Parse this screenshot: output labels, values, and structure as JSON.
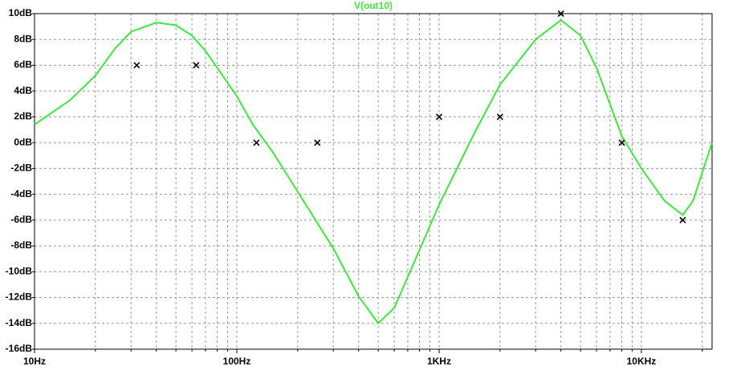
{
  "chart_data": {
    "type": "line",
    "title": "V(out10)",
    "xscale": "log",
    "xlim": [
      10,
      22350
    ],
    "ylim": [
      -16,
      10
    ],
    "xticks": [
      {
        "value": 10,
        "label": "10Hz"
      },
      {
        "value": 100,
        "label": "100Hz"
      },
      {
        "value": 1000,
        "label": "1KHz"
      },
      {
        "value": 10000,
        "label": "10KHz"
      }
    ],
    "xticks_minor": [
      20,
      30,
      40,
      50,
      60,
      70,
      80,
      90,
      200,
      300,
      400,
      500,
      600,
      700,
      800,
      900,
      2000,
      3000,
      4000,
      5000,
      6000,
      7000,
      8000,
      9000,
      20000
    ],
    "yticks": [
      {
        "value": 10,
        "label": "10dB"
      },
      {
        "value": 8,
        "label": "8dB"
      },
      {
        "value": 6,
        "label": "6dB"
      },
      {
        "value": 4,
        "label": "4dB"
      },
      {
        "value": 2,
        "label": "2dB"
      },
      {
        "value": 0,
        "label": "0dB"
      },
      {
        "value": -2,
        "label": "-2dB"
      },
      {
        "value": -4,
        "label": "-4dB"
      },
      {
        "value": -6,
        "label": "-6dB"
      },
      {
        "value": -8,
        "label": "-8dB"
      },
      {
        "value": -10,
        "label": "-10dB"
      },
      {
        "value": -12,
        "label": "-12dB"
      },
      {
        "value": -14,
        "label": "-14dB"
      },
      {
        "value": -16,
        "label": "-16dB"
      }
    ],
    "grid": true,
    "color": "#3ee83e",
    "x": [
      10,
      15,
      20,
      25,
      30,
      40,
      50,
      60,
      70,
      80,
      100,
      120,
      150,
      200,
      300,
      400,
      500,
      600,
      700,
      1000,
      1500,
      2000,
      3000,
      4000,
      5000,
      6000,
      8000,
      10000,
      13000,
      16000,
      18000,
      20000,
      22350
    ],
    "values": [
      1.4,
      3.3,
      5.2,
      7.3,
      8.6,
      9.3,
      9.1,
      8.3,
      7.1,
      5.8,
      3.6,
      1.4,
      -0.7,
      -3.8,
      -8.2,
      -11.9,
      -14.0,
      -12.8,
      -10.4,
      -4.8,
      0.8,
      4.5,
      8.0,
      9.5,
      8.3,
      5.8,
      0.5,
      -2.0,
      -4.5,
      -5.6,
      -4.5,
      -2.3,
      0
    ],
    "markers": {
      "type": "scatter",
      "color": "#000000",
      "x": [
        32,
        63,
        125,
        250,
        1000,
        2000,
        4000,
        8000,
        16000
      ],
      "values": [
        6,
        6,
        0,
        0,
        2,
        2,
        10,
        0,
        -6
      ]
    }
  }
}
